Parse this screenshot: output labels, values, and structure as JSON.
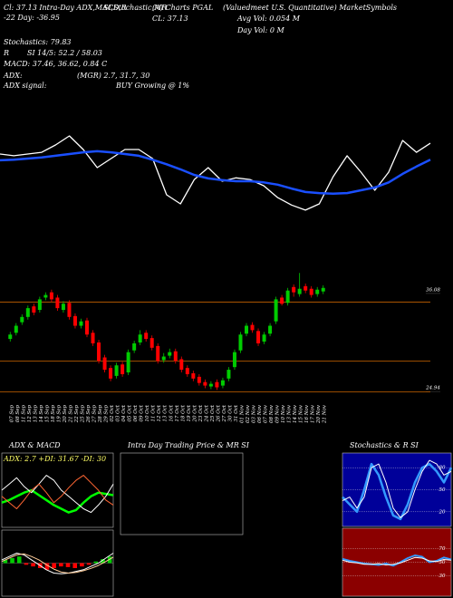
{
  "header": {
    "h1": "Cl: 37.13  Intra-Day ADX,MACD,R",
    "h2": "SI,Stochastic,MR",
    "h3": "(A) Charts PGAL",
    "h4": "(Valuedmeet U.S. Quantitative) MarketSymbols",
    "h5": "-22  Day: -36.95",
    "h6": "CL: 37.13",
    "h7": "Avg Vol: 0.054  M",
    "h8": "Day Vol: 0   M",
    "h9": "Stochastics: 79.83",
    "h10a": "R",
    "h10b": "SI 14/5: 52.2  / 58.03",
    "h11": "MACD: 37.46, 36.62, 0.84  C",
    "h12a": "ADX:",
    "h12b": "(MGR) 2.7, 31.7, 30",
    "h13a": "ADX  signal:",
    "h13b": "BUY Growing @ 1%"
  },
  "chart_data": [
    {
      "type": "line",
      "ylim": [
        24,
        40
      ],
      "series": [
        {
          "color": "#ffffff",
          "width": 1.3,
          "values": [
            35.2,
            34.9,
            35.2,
            35.5,
            36.8,
            38.4,
            36,
            32.8,
            34.4,
            36,
            36,
            34.4,
            28,
            26.4,
            30.7,
            32.8,
            30.4,
            31,
            30.7,
            29.6,
            27.5,
            26.2,
            25.3,
            26.4,
            31.2,
            34.9,
            32,
            28.8,
            32,
            37.6,
            35.5,
            37.1
          ]
        },
        {
          "color": "#1a4fff",
          "width": 2.5,
          "values": [
            34.1,
            34.2,
            34.4,
            34.6,
            34.9,
            35.2,
            35.5,
            35.7,
            35.5,
            35.2,
            34.9,
            34.2,
            33.4,
            32.5,
            31.5,
            30.9,
            30.6,
            30.4,
            30.4,
            30.2,
            29.8,
            29.1,
            28.5,
            28.3,
            28.2,
            28.3,
            28.8,
            29.3,
            30.2,
            31.7,
            33,
            34.2
          ]
        }
      ]
    },
    {
      "type": "candlestick",
      "ylim": [
        23.2,
        37.1
      ],
      "yticks": [
        36.08,
        24.94
      ],
      "hlines": [
        34.7,
        28,
        24.5
      ],
      "hline_color": "#cc6600",
      "up_color": "#00cc00",
      "down_color": "#ff0000",
      "categories": [
        "07 Sep",
        "08 Sep",
        "11 Sep",
        "12 Sep",
        "13 Sep",
        "14 Sep",
        "15 Sep",
        "18 Sep",
        "19 Sep",
        "20 Sep",
        "21 Sep",
        "22 Sep",
        "25 Sep",
        "26 Sep",
        "27 Sep",
        "28 Sep",
        "29 Sep",
        "02 Oct",
        "03 Oct",
        "04 Oct",
        "05 Oct",
        "06 Oct",
        "09 Oct",
        "10 Oct",
        "11 Oct",
        "12 Oct",
        "13 Oct",
        "16 Oct",
        "17 Oct",
        "18 Oct",
        "19 Oct",
        "20 Oct",
        "23 Oct",
        "24 Oct",
        "25 Oct",
        "26 Oct",
        "27 Oct",
        "30 Oct",
        "31 Oct",
        "01 Nov",
        "02 Nov",
        "03 Nov",
        "06 Nov",
        "07 Nov",
        "08 Nov",
        "09 Nov",
        "10 Nov",
        "13 Nov",
        "14 Nov",
        "15 Nov",
        "16 Nov",
        "17 Nov",
        "20 Nov",
        "21 Nov"
      ],
      "open": [
        30.5,
        31.2,
        32.4,
        33,
        34.2,
        33.8,
        35.2,
        35.8,
        35.2,
        33.8,
        34.6,
        33.1,
        32,
        32.6,
        31.2,
        30.1,
        28.4,
        27.2,
        26.3,
        27.6,
        26.7,
        29.2,
        30.1,
        31.2,
        30.6,
        29.7,
        28.1,
        28.6,
        29.1,
        28.2,
        27.2,
        26.6,
        26.2,
        25.6,
        25.1,
        25.6,
        25.2,
        26,
        27.3,
        29.2,
        31.1,
        32.1,
        31.4,
        30.2,
        31.1,
        32.5,
        35.2,
        34.6,
        36.4,
        35.6,
        36.5,
        36.2,
        35.6,
        35.9
      ],
      "high": [
        31.3,
        32.3,
        33.3,
        34.3,
        34.5,
        35.3,
        35.8,
        36.1,
        35.5,
        34.8,
        34.9,
        33.4,
        32.8,
        32.9,
        31.5,
        30.4,
        28.7,
        27.5,
        27.8,
        27.9,
        29.3,
        30.3,
        31.5,
        31.5,
        30.9,
        30,
        28.9,
        29.4,
        29.4,
        28.5,
        27.5,
        26.9,
        26.5,
        25.9,
        25.7,
        25.9,
        26.1,
        27.3,
        29.3,
        31.3,
        32.3,
        32.4,
        31.7,
        31.3,
        32.3,
        35.3,
        35.5,
        36.3,
        36.7,
        38,
        36.8,
        36.5,
        36.4,
        36.6
      ],
      "low": [
        30.2,
        30.9,
        32.1,
        32.7,
        33.2,
        33.5,
        34.9,
        34.7,
        33.7,
        33.5,
        32.7,
        31.7,
        31.7,
        30.7,
        29.7,
        27.7,
        26.7,
        25.7,
        26,
        26.2,
        26.4,
        28.9,
        29.8,
        30.2,
        29.2,
        27.7,
        27.8,
        28.3,
        27.7,
        26.7,
        26.2,
        25.7,
        25.2,
        24.9,
        24.8,
        24.7,
        24.9,
        25.7,
        27,
        28.9,
        30.8,
        31.2,
        29.7,
        29.9,
        30.8,
        32.2,
        34.3,
        34.3,
        35.3,
        35.3,
        35.7,
        35.2,
        35.3,
        35.6
      ],
      "close": [
        31,
        32,
        33,
        34,
        33.5,
        35,
        35.5,
        35,
        34,
        34.5,
        33,
        32,
        32.5,
        31,
        30,
        28,
        27,
        26,
        27.5,
        26.5,
        29,
        30,
        31,
        30.5,
        29.5,
        28,
        28.5,
        29,
        28,
        27,
        26.5,
        26,
        25.5,
        25.2,
        25.4,
        25,
        25.8,
        27,
        29,
        31,
        32,
        31.5,
        30,
        31,
        32,
        35,
        34.5,
        36,
        35.8,
        36.2,
        36,
        35.5,
        36.1,
        36.3
      ]
    },
    {
      "type": "line",
      "title": "ADX  & MACD",
      "annotation": "ADX: 2.7  +DI: 31.67  -DI: 30",
      "annotation_color": "#ffff66",
      "ylim": [
        0,
        60
      ],
      "series": [
        {
          "color": "#00ff00",
          "width": 2.5,
          "values": [
            20,
            22,
            25,
            28,
            30,
            26,
            22,
            18,
            15,
            12,
            14,
            20,
            25,
            28,
            27,
            26
          ]
        },
        {
          "color": "#ffffff",
          "width": 1,
          "values": [
            30,
            35,
            40,
            33,
            28,
            35,
            42,
            38,
            30,
            25,
            20,
            15,
            12,
            18,
            25,
            35
          ]
        },
        {
          "color": "#ff6633",
          "width": 1,
          "values": [
            25,
            20,
            15,
            22,
            30,
            35,
            28,
            20,
            25,
            32,
            38,
            42,
            36,
            30,
            22,
            18
          ]
        }
      ]
    },
    {
      "type": "bar",
      "ylim": [
        -1,
        1
      ],
      "up_color": "#00cc00",
      "down_color": "#ff0000",
      "values": [
        0.1,
        0.15,
        0.2,
        -0.05,
        -0.1,
        -0.15,
        -0.2,
        -0.15,
        -0.1,
        -0.12,
        -0.15,
        -0.1,
        -0.05,
        0.05,
        0.12,
        0.2
      ],
      "series": [
        {
          "color": "#ffffff",
          "width": 1,
          "values": [
            0.1,
            0.2,
            0.3,
            0.25,
            0.1,
            -0.05,
            -0.2,
            -0.3,
            -0.32,
            -0.3,
            -0.25,
            -0.2,
            -0.1,
            0,
            0.15,
            0.3
          ]
        },
        {
          "color": "#ffcc99",
          "width": 1,
          "values": [
            0.05,
            0.15,
            0.25,
            0.28,
            0.2,
            0.1,
            -0.05,
            -0.18,
            -0.27,
            -0.3,
            -0.28,
            -0.23,
            -0.16,
            -0.07,
            0.05,
            0.18
          ]
        }
      ]
    },
    {
      "type": "line",
      "title": "Intra Day Trading Price & MR SI",
      "series": []
    },
    {
      "type": "line",
      "title": "Stochastics & R SI",
      "background": "#000099",
      "ylim": [
        0,
        100
      ],
      "yticks": [
        20,
        50,
        80
      ],
      "grid": true,
      "series": [
        {
          "color": "#3399ff",
          "width": 2.5,
          "values": [
            40,
            30,
            20,
            50,
            85,
            70,
            40,
            15,
            10,
            30,
            60,
            80,
            85,
            75,
            60,
            80
          ]
        },
        {
          "color": "#ffffff",
          "width": 1,
          "values": [
            35,
            40,
            25,
            40,
            80,
            85,
            60,
            25,
            12,
            20,
            50,
            75,
            90,
            85,
            70,
            75
          ]
        }
      ]
    },
    {
      "type": "line",
      "background": "#8b0000",
      "ylim": [
        0,
        100
      ],
      "yticks": [
        30,
        50,
        70
      ],
      "grid": true,
      "series": [
        {
          "color": "#3399ff",
          "width": 2,
          "values": [
            55,
            52,
            50,
            48,
            47,
            46,
            48,
            45,
            50,
            56,
            60,
            58,
            50,
            52,
            57,
            54
          ]
        },
        {
          "color": "#ffffff",
          "width": 1,
          "values": [
            53,
            50,
            49,
            47,
            47,
            48,
            46,
            47,
            49,
            53,
            57,
            56,
            52,
            51,
            54,
            53
          ]
        }
      ]
    }
  ]
}
